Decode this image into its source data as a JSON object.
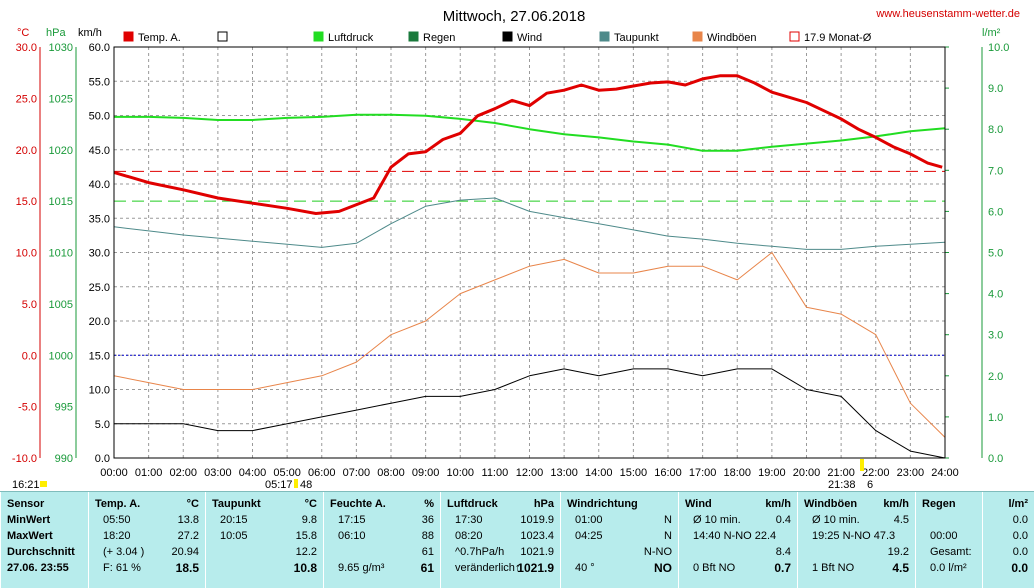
{
  "header": {
    "title": "Mittwoch, 27.06.2018",
    "site": "www.heusenstamm-wetter.de",
    "unit_temp": "°C",
    "unit_pressure": "hPa",
    "unit_speed": "km/h",
    "unit_rain": "l/m²"
  },
  "legend": [
    {
      "label": "Temp. A.",
      "color": "#e00000",
      "style": "filled"
    },
    {
      "label": "",
      "color": "#ffffff",
      "style": "empty"
    },
    {
      "label": "Luftdruck",
      "color": "#22dd22",
      "style": "filled"
    },
    {
      "label": "Regen",
      "color": "#1a7a3c",
      "style": "filled"
    },
    {
      "label": "Wind",
      "color": "#000000",
      "style": "filled"
    },
    {
      "label": "Taupunkt",
      "color": "#4e8a8a",
      "style": "filled"
    },
    {
      "label": "Windböen",
      "color": "#e8854a",
      "style": "filled"
    },
    {
      "label": "17.9 Monat-Ø",
      "color": "#e00000",
      "style": "outline"
    }
  ],
  "axes": {
    "temp_ticks": [
      "30.0",
      "25.0",
      "20.0",
      "15.0",
      "10.0",
      "5.0",
      "0.0",
      "-5.0",
      "-10.0"
    ],
    "pressure_ticks": [
      "1030",
      "1025",
      "1020",
      "1015",
      "1010",
      "1005",
      "1000",
      "995",
      "990"
    ],
    "speed_ticks": [
      "60.0",
      "55.0",
      "50.0",
      "45.0",
      "40.0",
      "35.0",
      "30.0",
      "25.0",
      "20.0",
      "15.0",
      "10.0",
      "5.0",
      "0.0"
    ],
    "rain_ticks": [
      "10.0",
      "9.0",
      "8.0",
      "7.0",
      "6.0",
      "5.0",
      "4.0",
      "3.0",
      "2.0",
      "1.0",
      "0.0"
    ],
    "time_ticks": [
      "00:00",
      "01:00",
      "02:00",
      "03:00",
      "04:00",
      "05:00",
      "06:00",
      "07:00",
      "08:00",
      "09:00",
      "10:00",
      "11:00",
      "12:00",
      "13:00",
      "14:00",
      "15:00",
      "16:00",
      "17:00",
      "18:00",
      "19:00",
      "20:00",
      "21:00",
      "22:00",
      "23:00",
      "24:00"
    ],
    "sunrise_label": "05:17",
    "sunrise_minutes": "48",
    "sunset_label": "21:38",
    "sunset_minutes": "6",
    "left_corner_time": "16:21"
  },
  "chart_data": {
    "type": "line",
    "x_unit": "hours",
    "xlim": [
      0,
      24
    ],
    "temp_ylim": [
      -10,
      30
    ],
    "pressure_ylim": [
      990,
      1030
    ],
    "speed_ylim": [
      0,
      60
    ],
    "rain_ylim": [
      0,
      10
    ],
    "monthly_avg_temp": 17.9,
    "reference_pressure_dashed": 1015,
    "zero_line_temp": 0,
    "series": [
      {
        "name": "Temp. A.",
        "color": "#e00000",
        "axis": "temp",
        "x": [
          0,
          1,
          2,
          3,
          4,
          5,
          5.83,
          6.5,
          7.5,
          8,
          8.5,
          9,
          9.5,
          10,
          10.5,
          11,
          11.5,
          12,
          12.5,
          13,
          13.5,
          14,
          14.5,
          15,
          15.5,
          16,
          16.5,
          17,
          17.5,
          18,
          18.5,
          19,
          19.5,
          20,
          20.5,
          21,
          21.5,
          22,
          22.5,
          23,
          23.5,
          23.92
        ],
        "y": [
          17.8,
          16.8,
          16.1,
          15.3,
          14.8,
          14.3,
          13.8,
          14.0,
          15.3,
          18.3,
          19.6,
          19.8,
          21.0,
          21.6,
          23.3,
          24.0,
          24.8,
          24.3,
          25.5,
          25.8,
          26.3,
          25.8,
          25.9,
          26.2,
          26.5,
          26.6,
          26.3,
          26.9,
          27.2,
          27.2,
          26.5,
          25.6,
          25.1,
          24.6,
          23.8,
          23.0,
          22.0,
          21.2,
          20.3,
          19.6,
          18.7,
          18.3
        ]
      },
      {
        "name": "Luftdruck",
        "color": "#22dd22",
        "axis": "pressure",
        "x": [
          0,
          1,
          2,
          3,
          4,
          5,
          6,
          7,
          8,
          9,
          10,
          11,
          12,
          13,
          14,
          15,
          16,
          17,
          18,
          19,
          20,
          21,
          22,
          23,
          24
        ],
        "y": [
          1023.2,
          1023.2,
          1023.1,
          1022.9,
          1022.9,
          1023.1,
          1023.2,
          1023.4,
          1023.4,
          1023.3,
          1023.0,
          1022.6,
          1022.0,
          1021.5,
          1021.2,
          1020.8,
          1020.5,
          1019.9,
          1019.9,
          1020.3,
          1020.6,
          1020.9,
          1021.3,
          1021.8,
          1022.1
        ]
      },
      {
        "name": "Taupunkt",
        "color": "#4e8a8a",
        "axis": "temp",
        "x": [
          0,
          1,
          2,
          3,
          4,
          5,
          6,
          7,
          8,
          9,
          10,
          11,
          12,
          13,
          14,
          15,
          16,
          17,
          18,
          19,
          20,
          21,
          22,
          23,
          24
        ],
        "y": [
          12.5,
          12.1,
          11.7,
          11.4,
          11.1,
          10.8,
          10.5,
          10.9,
          12.8,
          14.5,
          15.1,
          15.3,
          14.0,
          13.4,
          12.8,
          12.2,
          11.6,
          11.3,
          10.9,
          10.6,
          10.3,
          10.3,
          10.6,
          10.8,
          11.0
        ]
      },
      {
        "name": "Windböen",
        "color": "#e8854a",
        "axis": "speed",
        "x": [
          0,
          1,
          2,
          3,
          4,
          5,
          6,
          7,
          8,
          9,
          10,
          11,
          12,
          13,
          14,
          15,
          16,
          17,
          18,
          19,
          20,
          21,
          22,
          23,
          24
        ],
        "y": [
          12,
          11,
          10,
          10,
          10,
          11,
          12,
          14,
          18,
          20,
          24,
          26,
          28,
          29,
          27,
          27,
          28,
          28,
          26,
          30,
          22,
          21,
          18,
          8,
          3
        ]
      },
      {
        "name": "Wind",
        "color": "#000000",
        "axis": "speed",
        "x": [
          0,
          1,
          2,
          3,
          4,
          5,
          6,
          7,
          8,
          9,
          10,
          11,
          12,
          13,
          14,
          15,
          16,
          17,
          18,
          19,
          20,
          21,
          22,
          23,
          24
        ],
        "y": [
          5,
          5,
          5,
          4,
          4,
          5,
          6,
          7,
          8,
          9,
          9,
          10,
          12,
          13,
          12,
          13,
          13,
          12,
          13,
          13,
          10,
          9,
          4,
          1,
          0
        ]
      }
    ]
  },
  "stats": {
    "columns": [
      {
        "title": "Sensor",
        "unit": "",
        "rows": [
          [
            "MinWert",
            ""
          ],
          [
            "MaxWert",
            ""
          ],
          [
            "Durchschnitt",
            ""
          ],
          [
            "27.06. 23:55",
            ""
          ]
        ]
      },
      {
        "title": "Temp. A.",
        "unit": "°C",
        "rows": [
          [
            "05:50",
            "13.8"
          ],
          [
            "18:20",
            "27.2"
          ],
          [
            "(+ 3.04 )",
            "20.94"
          ],
          [
            "F: 61 %",
            "18.5"
          ]
        ]
      },
      {
        "title": "Taupunkt",
        "unit": "°C",
        "rows": [
          [
            "20:15",
            "9.8"
          ],
          [
            "10:05",
            "15.8"
          ],
          [
            "",
            "12.2"
          ],
          [
            "",
            "10.8"
          ]
        ]
      },
      {
        "title": "Feuchte A.",
        "unit": "%",
        "rows": [
          [
            "17:15",
            "36"
          ],
          [
            "06:10",
            "88"
          ],
          [
            "",
            "61"
          ],
          [
            "9.65 g/m³",
            "61"
          ]
        ]
      },
      {
        "title": "Luftdruck",
        "unit": "hPa",
        "rows": [
          [
            "17:30",
            "1019.9"
          ],
          [
            "08:20",
            "1023.4"
          ],
          [
            "^0.7hPa/h",
            "1021.9"
          ],
          [
            "veränderlich↑",
            "1021.9"
          ]
        ]
      },
      {
        "title": "Windrichtung",
        "unit": "",
        "rows": [
          [
            "01:00",
            "N"
          ],
          [
            "04:25",
            "N"
          ],
          [
            "",
            "N-NO"
          ],
          [
            "40 °",
            "NO"
          ]
        ]
      },
      {
        "title": "Wind",
        "unit": "km/h",
        "rows": [
          [
            "Ø 10 min.",
            "0.4"
          ],
          [
            "14:40  N-NO 22.4",
            ""
          ],
          [
            "",
            "8.4"
          ],
          [
            "0 Bft NO",
            "0.7"
          ]
        ]
      },
      {
        "title": "Windböen",
        "unit": "km/h",
        "rows": [
          [
            "Ø 10 min.",
            "4.5"
          ],
          [
            "19:25  N-NO 47.3",
            ""
          ],
          [
            "",
            "19.2"
          ],
          [
            "1 Bft NO",
            "4.5"
          ]
        ]
      },
      {
        "title": "Regen",
        "unit": "",
        "rows": [
          [
            "",
            ""
          ],
          [
            "00:00",
            ""
          ],
          [
            "Gesamt:",
            ""
          ],
          [
            "0.0 l/m²",
            ""
          ]
        ]
      },
      {
        "title": "",
        "unit": "l/m²",
        "rows": [
          [
            "",
            "0.0"
          ],
          [
            "",
            "0.0"
          ],
          [
            "",
            "0.0"
          ],
          [
            "",
            "0.0"
          ]
        ]
      }
    ]
  }
}
